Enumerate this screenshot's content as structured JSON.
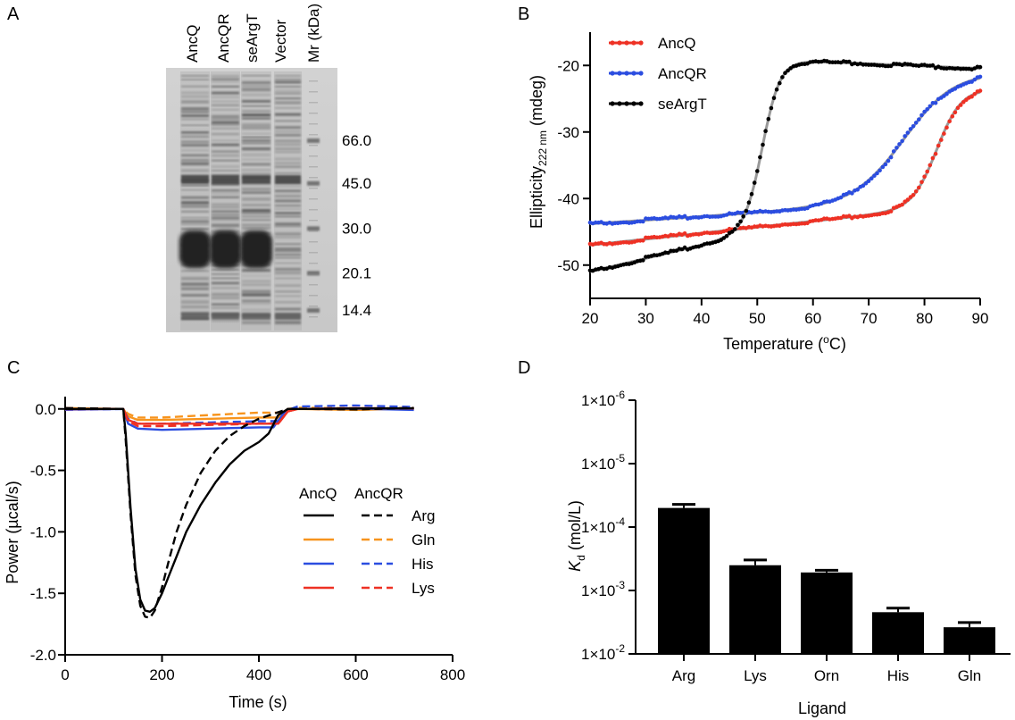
{
  "panels": {
    "a": {
      "letter": "A",
      "lanes": [
        "AncQ",
        "AncQR",
        "seArgT",
        "Vector",
        "Mr (kDa)"
      ],
      "markers": [
        {
          "label": "66.0",
          "kda": 66.0
        },
        {
          "label": "45.0",
          "kda": 45.0
        },
        {
          "label": "30.0",
          "kda": 30.0
        },
        {
          "label": "20.1",
          "kda": 20.1
        },
        {
          "label": "14.4",
          "kda": 14.4
        }
      ]
    },
    "b": {
      "letter": "B"
    },
    "c": {
      "letter": "C"
    },
    "d": {
      "letter": "D"
    }
  },
  "chart_data": [
    {
      "id": "B",
      "type": "scatter",
      "xlabel": "Temperature (oC)",
      "xlabel_main": "Temperature (",
      "xlabel_sup": "o",
      "xlabel_end": "C)",
      "ylabel_main": "Ellipticity",
      "ylabel_sub": "222 nm",
      "ylabel_end": " (mdeg)",
      "xlim": [
        20,
        90
      ],
      "ylim": [
        -55,
        -15
      ],
      "xticks": [
        20,
        30,
        40,
        50,
        60,
        70,
        80,
        90
      ],
      "yticks": [
        -50,
        -40,
        -30,
        -20
      ],
      "legend_position": "top-left",
      "series": [
        {
          "name": "AncQ",
          "color": "#ee3124",
          "model": "sigmoid",
          "x_range": [
            20,
            90
          ],
          "params": {
            "low": -47.0,
            "low_slope": 0.09,
            "high": -23.5,
            "tm": 82.3,
            "width": 2.2
          }
        },
        {
          "name": "AncQR",
          "color": "#2b4de0",
          "model": "sigmoid",
          "x_range": [
            20,
            90
          ],
          "params": {
            "low": -43.8,
            "low_slope": 0.055,
            "high": -21.0,
            "tm": 76.5,
            "width": 4.5
          }
        },
        {
          "name": "seArgT",
          "color": "#000000",
          "model": "sigmoid",
          "x_range": [
            20,
            90
          ],
          "params": {
            "low": -51.0,
            "low_slope": 0.2,
            "high": -19.4,
            "tm": 51.0,
            "width": 1.6,
            "high_slope": -0.035
          }
        }
      ],
      "fit_color": "#999999"
    },
    {
      "id": "C",
      "type": "line",
      "xlabel": "Time (s)",
      "ylabel": "Power (µcal/s)",
      "xlim": [
        0,
        800
      ],
      "ylim": [
        -2.0,
        0.1
      ],
      "xticks": [
        0,
        200,
        400,
        600,
        800
      ],
      "yticks": [
        {
          "v": 0.0,
          "label": "0.0"
        },
        {
          "v": -0.5,
          "label": "-0.5"
        },
        {
          "v": -1.0,
          "label": "-1.0"
        },
        {
          "v": -1.5,
          "label": "-1.5"
        },
        {
          "v": -2.0,
          "label": "-2.0"
        }
      ],
      "legend_position": "right",
      "legend_headers": [
        "AncQ",
        "AncQR"
      ],
      "legend_styles": {
        "AncQ": "solid",
        "AncQR": "dashed"
      },
      "series": [
        {
          "name": "Arg",
          "color": "#000000",
          "style": "solid",
          "protein": "AncQ",
          "x": [
            0,
            120,
            125,
            135,
            145,
            155,
            165,
            175,
            185,
            200,
            215,
            230,
            250,
            280,
            310,
            340,
            370,
            400,
            420,
            440,
            460,
            480,
            500,
            600,
            720
          ],
          "y": [
            0.0,
            0.0,
            -0.2,
            -0.8,
            -1.3,
            -1.55,
            -1.64,
            -1.65,
            -1.62,
            -1.5,
            -1.35,
            -1.2,
            -1.0,
            -0.78,
            -0.6,
            -0.45,
            -0.34,
            -0.27,
            -0.2,
            -0.05,
            0.0,
            0.0,
            0.0,
            0.0,
            0.0
          ]
        },
        {
          "name": "Arg",
          "color": "#000000",
          "style": "dashed",
          "protein": "AncQR",
          "x": [
            0,
            120,
            125,
            135,
            145,
            155,
            165,
            175,
            185,
            200,
            215,
            230,
            250,
            280,
            310,
            340,
            370,
            400,
            430,
            460,
            480,
            500,
            600,
            720
          ],
          "y": [
            0.0,
            0.0,
            -0.25,
            -0.85,
            -1.35,
            -1.6,
            -1.69,
            -1.7,
            -1.64,
            -1.45,
            -1.22,
            -1.0,
            -0.78,
            -0.52,
            -0.34,
            -0.22,
            -0.14,
            -0.08,
            -0.04,
            0.0,
            0.0,
            0.0,
            0.0,
            0.0
          ]
        },
        {
          "name": "Gln",
          "color": "#f7941d",
          "style": "solid",
          "protein": "AncQ",
          "x": [
            0,
            120,
            130,
            150,
            200,
            300,
            400,
            440,
            460,
            480,
            600,
            720
          ],
          "y": [
            0.0,
            0.0,
            -0.06,
            -0.09,
            -0.09,
            -0.08,
            -0.07,
            -0.07,
            -0.02,
            0.0,
            0.0,
            0.0
          ]
        },
        {
          "name": "Gln",
          "color": "#f7941d",
          "style": "dashed",
          "protein": "AncQR",
          "x": [
            0,
            120,
            130,
            150,
            200,
            300,
            400,
            440,
            460,
            480,
            600,
            720
          ],
          "y": [
            0.0,
            0.0,
            -0.04,
            -0.07,
            -0.07,
            -0.05,
            -0.03,
            -0.03,
            0.0,
            0.01,
            0.01,
            0.01
          ]
        },
        {
          "name": "His",
          "color": "#2b4de0",
          "style": "solid",
          "protein": "AncQ",
          "x": [
            0,
            120,
            130,
            150,
            200,
            300,
            400,
            430,
            450,
            470,
            600,
            720
          ],
          "y": [
            0.0,
            0.0,
            -0.12,
            -0.16,
            -0.17,
            -0.16,
            -0.15,
            -0.15,
            -0.04,
            0.0,
            0.0,
            0.0
          ]
        },
        {
          "name": "His",
          "color": "#2b4de0",
          "style": "dashed",
          "protein": "AncQR",
          "x": [
            0,
            120,
            130,
            150,
            200,
            300,
            400,
            440,
            460,
            480,
            600,
            720
          ],
          "y": [
            0.0,
            0.0,
            -0.08,
            -0.12,
            -0.12,
            -0.11,
            -0.1,
            -0.1,
            -0.01,
            0.02,
            0.02,
            0.02
          ]
        },
        {
          "name": "Lys",
          "color": "#ee3124",
          "style": "solid",
          "protein": "AncQ",
          "x": [
            0,
            120,
            130,
            150,
            200,
            300,
            400,
            440,
            460,
            480,
            600,
            720
          ],
          "y": [
            0.0,
            0.0,
            -0.09,
            -0.12,
            -0.12,
            -0.12,
            -0.12,
            -0.12,
            -0.02,
            0.0,
            0.0,
            0.0
          ]
        },
        {
          "name": "Lys",
          "color": "#ee3124",
          "style": "dashed",
          "protein": "AncQR",
          "x": [
            0,
            120,
            130,
            150,
            200,
            300,
            400,
            440,
            460,
            480,
            600,
            720
          ],
          "y": [
            0.0,
            0.0,
            -0.1,
            -0.14,
            -0.14,
            -0.13,
            -0.12,
            -0.12,
            -0.02,
            0.0,
            0.0,
            0.0
          ]
        }
      ]
    },
    {
      "id": "D",
      "type": "bar",
      "xlabel": "Ligand",
      "ylabel_main": "K",
      "ylabel_sub": "d",
      "ylabel_end": "  (mol/L)",
      "scale": "log-inverted",
      "ylim": [
        0.01,
        1e-06
      ],
      "yticks": [
        {
          "v": 1e-06,
          "base": "1×10",
          "exp": "-6"
        },
        {
          "v": 1e-05,
          "base": "1×10",
          "exp": "-5"
        },
        {
          "v": 0.0001,
          "base": "1×10",
          "exp": "-4"
        },
        {
          "v": 0.001,
          "base": "1×10",
          "exp": "-3"
        },
        {
          "v": 0.01,
          "base": "1×10",
          "exp": "-2"
        }
      ],
      "categories": [
        "Arg",
        "Lys",
        "Orn",
        "His",
        "Gln"
      ],
      "values": [
        5e-05,
        0.0004,
        0.00052,
        0.0022,
        0.0038
      ],
      "error_upper": [
        4.4e-05,
        0.00033,
        0.00048,
        0.0019,
        0.0032
      ],
      "bar_color": "#000000"
    }
  ]
}
